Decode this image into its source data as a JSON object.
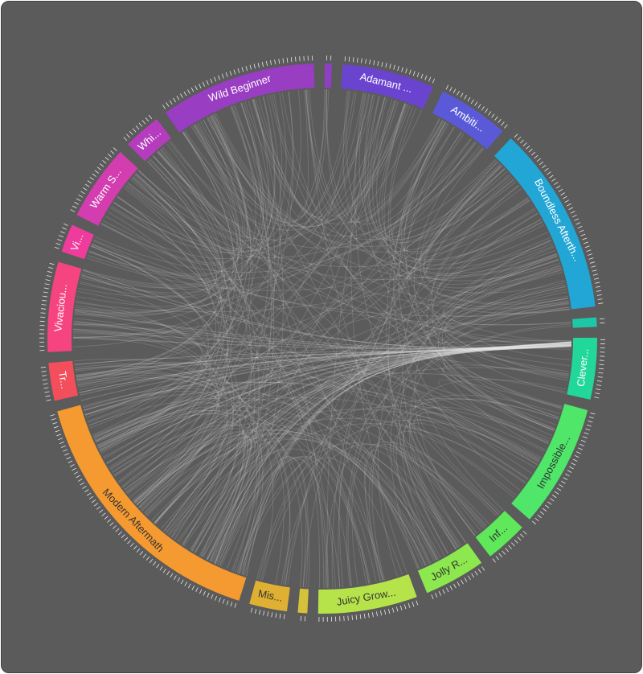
{
  "chart_data": {
    "type": "chord",
    "categories": [
      null,
      "Adamant ...",
      "Ambiti...",
      "Boundless Afterth...",
      null,
      "Clever...",
      "Impossible...",
      "Inf...",
      "Jolly R...",
      "Juicy Grow...",
      null,
      "Mis...",
      "Modern Aftermath",
      "Tr...",
      "Vivaciou...",
      "Vi...",
      "Warm S...",
      "Whi...",
      "Wild Beginner"
    ],
    "values": [
      1.5,
      19.5,
      15,
      40,
      2,
      13,
      26,
      9,
      13,
      21,
      2,
      8,
      57,
      8,
      19,
      6,
      16,
      8,
      33
    ],
    "colors": [
      "#8e3fc2",
      "#6a44cf",
      "#5a5ad8",
      "#22a6d6",
      "#1ec7a6",
      "#22d79a",
      "#4fe66a",
      "#5ee85a",
      "#8ce84e",
      "#b6e34a",
      "#d6c23a",
      "#e0b032",
      "#f59a31",
      "#f24e5c",
      "#f5447f",
      "#ef3c9c",
      "#d33daf",
      "#b43cbd",
      "#993dc2"
    ]
  }
}
